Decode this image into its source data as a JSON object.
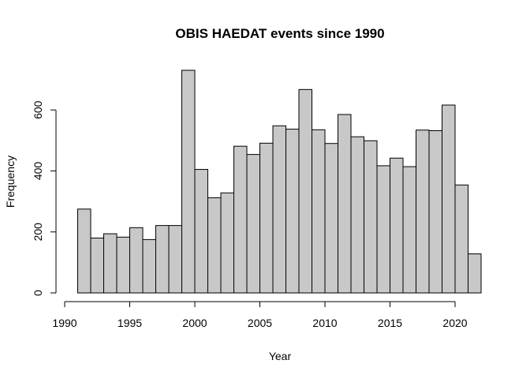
{
  "chart_data": {
    "type": "bar",
    "title": "OBIS HAEDAT events since 1990",
    "xlabel": "Year",
    "ylabel": "Frequency",
    "bar_color": "#c8c8c8",
    "bin_width": 1,
    "xlim": [
      1990,
      2022
    ],
    "ylim": [
      0,
      730
    ],
    "x_ticks": [
      1990,
      1995,
      2000,
      2005,
      2010,
      2015,
      2020
    ],
    "y_ticks": [
      0,
      200,
      400,
      600
    ],
    "bins": [
      {
        "start": 1991,
        "end": 1992,
        "value": 275
      },
      {
        "start": 1992,
        "end": 1993,
        "value": 180
      },
      {
        "start": 1993,
        "end": 1994,
        "value": 194
      },
      {
        "start": 1994,
        "end": 1995,
        "value": 183
      },
      {
        "start": 1995,
        "end": 1996,
        "value": 214
      },
      {
        "start": 1996,
        "end": 1997,
        "value": 175
      },
      {
        "start": 1997,
        "end": 1998,
        "value": 221
      },
      {
        "start": 1998,
        "end": 1999,
        "value": 221
      },
      {
        "start": 1999,
        "end": 2000,
        "value": 730
      },
      {
        "start": 2000,
        "end": 2001,
        "value": 405
      },
      {
        "start": 2001,
        "end": 2002,
        "value": 312
      },
      {
        "start": 2002,
        "end": 2003,
        "value": 328
      },
      {
        "start": 2003,
        "end": 2004,
        "value": 481
      },
      {
        "start": 2004,
        "end": 2005,
        "value": 454
      },
      {
        "start": 2005,
        "end": 2006,
        "value": 491
      },
      {
        "start": 2006,
        "end": 2007,
        "value": 548
      },
      {
        "start": 2007,
        "end": 2008,
        "value": 537
      },
      {
        "start": 2008,
        "end": 2009,
        "value": 667
      },
      {
        "start": 2009,
        "end": 2010,
        "value": 535
      },
      {
        "start": 2010,
        "end": 2011,
        "value": 490
      },
      {
        "start": 2011,
        "end": 2012,
        "value": 585
      },
      {
        "start": 2012,
        "end": 2013,
        "value": 512
      },
      {
        "start": 2013,
        "end": 2014,
        "value": 499
      },
      {
        "start": 2014,
        "end": 2015,
        "value": 417
      },
      {
        "start": 2015,
        "end": 2016,
        "value": 442
      },
      {
        "start": 2016,
        "end": 2017,
        "value": 414
      },
      {
        "start": 2017,
        "end": 2018,
        "value": 534
      },
      {
        "start": 2018,
        "end": 2019,
        "value": 532
      },
      {
        "start": 2019,
        "end": 2020,
        "value": 616
      },
      {
        "start": 2020,
        "end": 2021,
        "value": 354
      },
      {
        "start": 2021,
        "end": 2022,
        "value": 128
      }
    ]
  }
}
